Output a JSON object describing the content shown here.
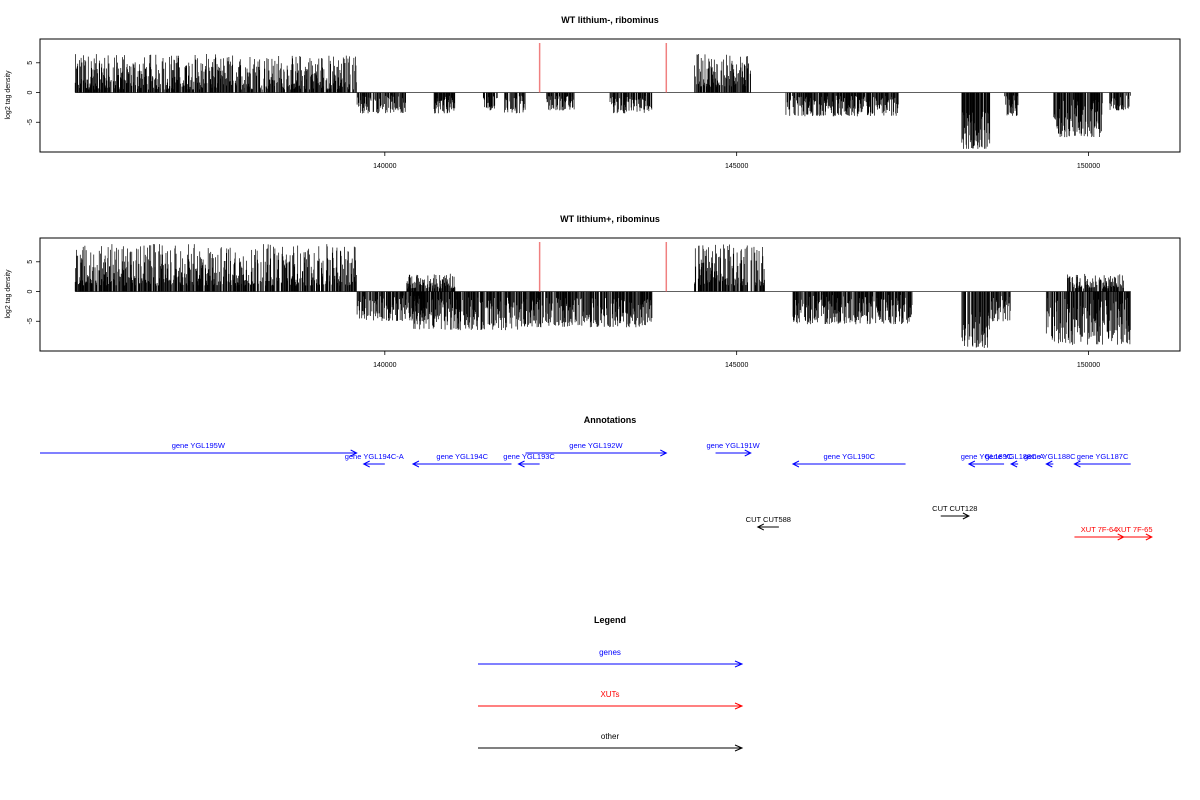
{
  "chart_data": [
    {
      "type": "bar",
      "title": "WT lithium-, ribominus",
      "ylabel": "log2 tag density",
      "xlim": [
        135100,
        151300
      ],
      "ylim": [
        -10,
        9
      ],
      "yticks": [
        -5,
        0,
        5
      ],
      "xticks": [
        140000,
        145000,
        150000
      ],
      "grid": false,
      "markers_red": [
        142200,
        144000
      ],
      "segments": [
        {
          "from": 135600,
          "to": 139600,
          "min": 0.5,
          "max": 6.5
        },
        {
          "from": 139600,
          "to": 140300,
          "min": -3.5,
          "max": -0.5
        },
        {
          "from": 140700,
          "to": 141000,
          "min": -3.5,
          "max": -0.5
        },
        {
          "from": 141400,
          "to": 141600,
          "min": -3.0,
          "max": -0.5
        },
        {
          "from": 141700,
          "to": 142000,
          "min": -3.5,
          "max": -0.5
        },
        {
          "from": 142300,
          "to": 142700,
          "min": -3.0,
          "max": -0.5
        },
        {
          "from": 143200,
          "to": 143800,
          "min": -3.5,
          "max": -0.5
        },
        {
          "from": 144400,
          "to": 145200,
          "min": 1.0,
          "max": 6.5
        },
        {
          "from": 145700,
          "to": 147300,
          "min": -4.0,
          "max": -0.5
        },
        {
          "from": 148200,
          "to": 148600,
          "min": -9.5,
          "max": -3.0
        },
        {
          "from": 148800,
          "to": 149000,
          "min": -4.0,
          "max": -0.5
        },
        {
          "from": 149500,
          "to": 150200,
          "min": -7.5,
          "max": -1.0
        },
        {
          "from": 150300,
          "to": 150600,
          "min": -3.0,
          "max": -0.5
        }
      ]
    },
    {
      "type": "bar",
      "title": "WT lithium+, ribominus",
      "ylabel": "log2 tag density",
      "xlim": [
        135100,
        151300
      ],
      "ylim": [
        -10,
        9
      ],
      "yticks": [
        -5,
        0,
        5
      ],
      "xticks": [
        140000,
        145000,
        150000
      ],
      "grid": false,
      "markers_red": [
        142200,
        144000
      ],
      "segments": [
        {
          "from": 135600,
          "to": 139600,
          "min": 1.0,
          "max": 8.0
        },
        {
          "from": 139600,
          "to": 140600,
          "min": -5.0,
          "max": -0.5
        },
        {
          "from": 140300,
          "to": 141000,
          "min": 0.5,
          "max": 3.0
        },
        {
          "from": 140400,
          "to": 141900,
          "min": -6.5,
          "max": -1.0
        },
        {
          "from": 141900,
          "to": 143800,
          "min": -6.0,
          "max": -1.0
        },
        {
          "from": 144400,
          "to": 145400,
          "min": 1.0,
          "max": 8.0
        },
        {
          "from": 145800,
          "to": 147500,
          "min": -5.5,
          "max": -0.5
        },
        {
          "from": 148200,
          "to": 148600,
          "min": -9.5,
          "max": -3.0
        },
        {
          "from": 148600,
          "to": 148900,
          "min": -5.0,
          "max": -0.5
        },
        {
          "from": 149400,
          "to": 150600,
          "min": -9.0,
          "max": -1.0
        },
        {
          "from": 149700,
          "to": 150500,
          "min": 0.5,
          "max": 3.0
        }
      ]
    }
  ],
  "annotations": {
    "title": "Annotations",
    "items": [
      {
        "label": "gene YGL195W",
        "kind": "genes",
        "from": 135100,
        "to": 139600,
        "row": 0
      },
      {
        "label": "gene YGL194C-A",
        "kind": "genes",
        "from": 140000,
        "to": 139700,
        "row": 1
      },
      {
        "label": "gene YGL194C",
        "kind": "genes",
        "from": 141800,
        "to": 140400,
        "row": 1
      },
      {
        "label": "gene YGL193C",
        "kind": "genes",
        "from": 142200,
        "to": 141900,
        "row": 1
      },
      {
        "label": "gene YGL192W",
        "kind": "genes",
        "from": 142000,
        "to": 144000,
        "row": 0
      },
      {
        "label": "gene YGL191W",
        "kind": "genes",
        "from": 144700,
        "to": 145200,
        "row": 0
      },
      {
        "label": "gene YGL190C",
        "kind": "genes",
        "from": 147400,
        "to": 145800,
        "row": 1
      },
      {
        "label": "gene YGL189C",
        "kind": "genes",
        "from": 148800,
        "to": 148300,
        "row": 1
      },
      {
        "label": "gene YGL188C-A",
        "kind": "genes",
        "from": 149000,
        "to": 148900,
        "row": 1
      },
      {
        "label": "gene YGL188C",
        "kind": "genes",
        "from": 149500,
        "to": 149400,
        "row": 1
      },
      {
        "label": "gene YGL187C",
        "kind": "genes",
        "from": 150600,
        "to": 149800,
        "row": 1
      },
      {
        "label": "CUT CUT588",
        "kind": "other",
        "from": 145600,
        "to": 145300,
        "row": 3
      },
      {
        "label": "CUT CUT128",
        "kind": "other",
        "from": 147900,
        "to": 148300,
        "row": 2
      },
      {
        "label": "XUT 7F-64",
        "kind": "xuts",
        "from": 149800,
        "to": 150500,
        "row": 4
      },
      {
        "label": "XUT 7F-65",
        "kind": "xuts",
        "from": 150400,
        "to": 150900,
        "row": 4
      }
    ]
  },
  "legend": {
    "title": "Legend",
    "items": [
      {
        "label": "genes",
        "color": "#0000ff"
      },
      {
        "label": "XUTs",
        "color": "#ff0000"
      },
      {
        "label": "other",
        "color": "#000000"
      }
    ]
  },
  "colors": {
    "genes": "#0000ff",
    "xuts": "#ff0000",
    "other": "#000000",
    "marker": "#f08080",
    "bars": "#000000"
  }
}
